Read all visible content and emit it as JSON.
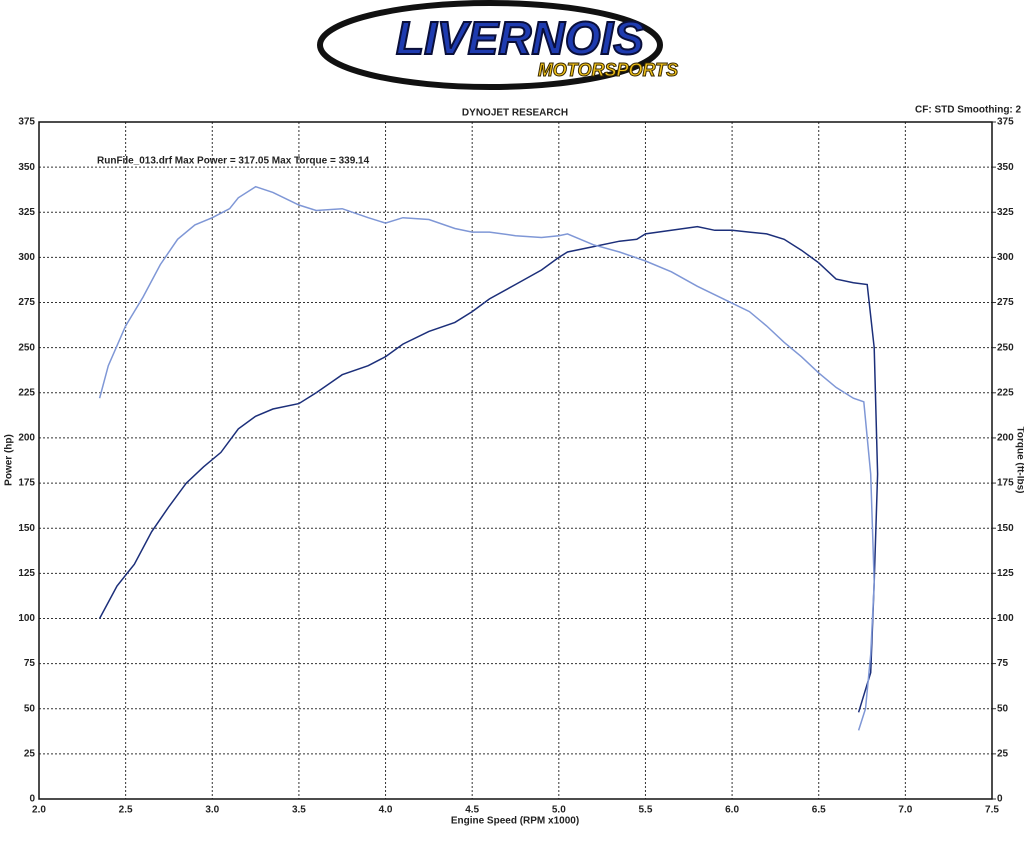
{
  "logo": {
    "name": "LIVERNOIS",
    "sub": "MOTORSPORTS"
  },
  "chart_data": {
    "type": "line",
    "title": "DYNOJET RESEARCH",
    "subtitle": "CF: STD  Smoothing: 2",
    "annotation": "RunFile_013.drf Max Power = 317.05    Max Torque = 339.14",
    "xlabel": "Engine Speed (RPM x1000)",
    "ylabel": "Power (hp)",
    "y2label": "Torque (ft-lbs)",
    "xlim": [
      2,
      7.5
    ],
    "xticks": [
      {
        "value": 2,
        "label": "2.0"
      },
      2.5,
      {
        "value": 3,
        "label": "3.0"
      },
      3.5,
      {
        "value": 4,
        "label": "4.0"
      },
      4.5,
      {
        "value": 5,
        "label": "5.0"
      },
      5.5,
      {
        "value": 6,
        "label": "6.0"
      },
      6.5,
      {
        "value": 7,
        "label": "7.0"
      },
      7.5
    ],
    "ylim": [
      0,
      375
    ],
    "yticks": [
      0,
      25,
      50,
      75,
      100,
      125,
      150,
      175,
      200,
      225,
      250,
      275,
      300,
      325,
      350,
      375
    ],
    "y2lim": [
      0,
      375
    ],
    "y2ticks": [
      0,
      25,
      50,
      75,
      100,
      125,
      150,
      175,
      200,
      225,
      250,
      275,
      300,
      325,
      350,
      375
    ],
    "grid": true,
    "series": [
      {
        "color": "#1c2f7a",
        "x": [
          2.35,
          2.45,
          2.55,
          2.65,
          2.75,
          2.85,
          2.95,
          3.05,
          3.15,
          3.25,
          3.35,
          3.5,
          3.6,
          3.75,
          3.9,
          4.0,
          4.1,
          4.25,
          4.4,
          4.5,
          4.6,
          4.75,
          4.9,
          5.0,
          5.05,
          5.2,
          5.35,
          5.45,
          5.5,
          5.65,
          5.8,
          5.9,
          6.0,
          6.1,
          6.2,
          6.3,
          6.4,
          6.5,
          6.6,
          6.7,
          6.78,
          6.82,
          6.84,
          6.82,
          6.8,
          6.73
        ],
        "values": [
          100,
          118,
          130,
          148,
          162,
          175,
          184,
          192,
          205,
          212,
          216,
          219,
          225,
          235,
          240,
          245,
          252,
          259,
          264,
          270,
          277,
          285,
          293,
          300,
          303,
          306,
          309,
          310,
          313,
          315,
          317.05,
          315,
          315,
          314,
          313,
          310,
          304,
          297,
          288,
          286,
          285,
          250,
          180,
          120,
          70,
          48
        ]
      },
      {
        "color": "#7f97d6",
        "axis": "y2",
        "x": [
          2.35,
          2.4,
          2.5,
          2.6,
          2.7,
          2.8,
          2.9,
          3.0,
          3.1,
          3.15,
          3.25,
          3.35,
          3.5,
          3.6,
          3.75,
          3.9,
          4.0,
          4.1,
          4.25,
          4.4,
          4.5,
          4.6,
          4.75,
          4.9,
          5.0,
          5.05,
          5.2,
          5.35,
          5.5,
          5.65,
          5.8,
          5.95,
          6.1,
          6.2,
          6.3,
          6.4,
          6.5,
          6.6,
          6.7,
          6.76,
          6.8,
          6.82,
          6.8,
          6.77,
          6.73
        ],
        "values": [
          222,
          240,
          262,
          278,
          296,
          310,
          318,
          322,
          327,
          333,
          339.14,
          336,
          329,
          326,
          327,
          322,
          319,
          322,
          321,
          316,
          314,
          314,
          312,
          311,
          312,
          313,
          307,
          303,
          298,
          292,
          284,
          277,
          270,
          262,
          253,
          245,
          236,
          228,
          222,
          220,
          180,
          120,
          80,
          50,
          38
        ]
      }
    ]
  }
}
